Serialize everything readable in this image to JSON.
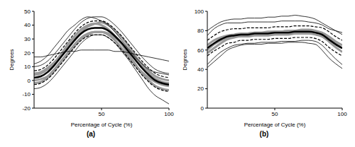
{
  "chart_data": [
    {
      "type": "line",
      "title": "(a)",
      "xlabel": "Percentage of Cycle (%)",
      "ylabel": "Degrees",
      "x": [
        0,
        5,
        10,
        15,
        20,
        25,
        30,
        35,
        40,
        45,
        50,
        55,
        60,
        65,
        70,
        75,
        80,
        85,
        90,
        95,
        100
      ],
      "xlim": [
        0,
        100
      ],
      "xticks": [
        50,
        100
      ],
      "ylim": [
        -20,
        50
      ],
      "yticks": [
        -20,
        -10,
        0,
        10,
        20,
        30,
        40,
        50
      ],
      "grid": false,
      "series": [
        {
          "color": "#999999",
          "line_style": "solid",
          "values": [
            4,
            5,
            8,
            13,
            19,
            26,
            32,
            37,
            40,
            41,
            40,
            37,
            32,
            26,
            19,
            12,
            5,
            0,
            -4,
            -6,
            -7
          ]
        },
        {
          "color": "#999999",
          "line_style": "solid",
          "values": [
            0,
            1,
            3,
            8,
            14,
            20,
            26,
            31,
            34,
            35,
            35,
            34,
            31,
            27,
            22,
            17,
            12,
            7,
            3,
            1,
            0
          ]
        },
        {
          "color": "#999999",
          "line_style": "solid",
          "values": [
            5,
            6,
            9,
            13,
            18,
            24,
            30,
            35,
            39,
            41,
            42,
            40,
            36,
            31,
            25,
            18,
            11,
            5,
            1,
            -1,
            -2
          ]
        },
        {
          "color": "#999999",
          "line_style": "solid",
          "values": [
            -2,
            -1,
            2,
            7,
            13,
            19,
            25,
            30,
            33,
            35,
            35,
            33,
            29,
            23,
            17,
            11,
            6,
            2,
            -1,
            -3,
            -4
          ]
        },
        {
          "color": "#000000",
          "line_style": "solid",
          "values": [
            17,
            17,
            18,
            19,
            20,
            21,
            21,
            22,
            22,
            22,
            22,
            22,
            21,
            21,
            20,
            19,
            18,
            17,
            16,
            15,
            14
          ]
        },
        {
          "color": "#000000",
          "line_style": "solid",
          "values": [
            10,
            11,
            14,
            19,
            25,
            31,
            37,
            42,
            45,
            46,
            46,
            44,
            40,
            35,
            29,
            23,
            17,
            12,
            8,
            6,
            5
          ]
        },
        {
          "color": "#000000",
          "line_style": "solid",
          "values": [
            -6,
            -5,
            -2,
            3,
            9,
            15,
            21,
            27,
            31,
            33,
            33,
            31,
            27,
            21,
            15,
            8,
            1,
            -6,
            -11,
            -14,
            -17
          ]
        },
        {
          "color": "#000000",
          "line_style": "solid",
          "values": [
            12,
            14,
            18,
            24,
            30,
            36,
            40,
            44,
            46,
            45,
            43,
            40,
            35,
            29,
            23,
            17,
            12,
            8,
            6,
            5,
            4
          ]
        },
        {
          "color": "#000000",
          "line_style": "dashed",
          "values": [
            7,
            8,
            11,
            16,
            22,
            28,
            34,
            39,
            42,
            43,
            43,
            41,
            37,
            32,
            26,
            20,
            14,
            9,
            5,
            3,
            2
          ]
        },
        {
          "color": "#000000",
          "line_style": "dashed",
          "values": [
            -3,
            -2,
            1,
            6,
            12,
            18,
            24,
            29,
            32,
            33,
            33,
            31,
            27,
            22,
            16,
            10,
            4,
            -1,
            -5,
            -7,
            -8
          ]
        },
        {
          "color": "#000000",
          "line_style": "bold",
          "values": [
            2,
            3,
            6,
            11,
            17,
            23,
            29,
            34,
            37,
            38,
            38,
            36,
            32,
            27,
            21,
            15,
            9,
            4,
            0,
            -2,
            -3
          ]
        }
      ]
    },
    {
      "type": "line",
      "title": "(b)",
      "xlabel": "Percentage of Cycle (%)",
      "ylabel": "Degrees",
      "x": [
        0,
        5,
        10,
        15,
        20,
        25,
        30,
        35,
        40,
        45,
        50,
        55,
        60,
        65,
        70,
        75,
        80,
        85,
        90,
        95,
        100
      ],
      "xlim": [
        0,
        100
      ],
      "xticks": [
        50,
        100
      ],
      "ylim": [
        0,
        100
      ],
      "yticks": [
        0,
        20,
        40,
        60,
        80,
        100
      ],
      "grid": false,
      "series": [
        {
          "color": "#999999",
          "line_style": "solid",
          "values": [
            60,
            66,
            70,
            73,
            75,
            76,
            77,
            78,
            78,
            78,
            79,
            79,
            80,
            80,
            80,
            80,
            79,
            77,
            72,
            67,
            62
          ]
        },
        {
          "color": "#999999",
          "line_style": "solid",
          "values": [
            65,
            70,
            73,
            75,
            76,
            77,
            77,
            78,
            78,
            79,
            79,
            79,
            80,
            80,
            81,
            81,
            80,
            78,
            74,
            69,
            65
          ]
        },
        {
          "color": "#999999",
          "line_style": "solid",
          "values": [
            57,
            62,
            67,
            71,
            73,
            74,
            74,
            75,
            75,
            75,
            76,
            76,
            76,
            77,
            77,
            77,
            76,
            74,
            69,
            63,
            58
          ]
        },
        {
          "color": "#000000",
          "line_style": "solid",
          "values": [
            80,
            85,
            89,
            91,
            92,
            92,
            93,
            93,
            93,
            94,
            94,
            95,
            95,
            96,
            95,
            94,
            92,
            88,
            84,
            80,
            76
          ]
        },
        {
          "color": "#000000",
          "line_style": "solid",
          "values": [
            75,
            82,
            86,
            88,
            88,
            88,
            89,
            89,
            89,
            89,
            89,
            90,
            90,
            90,
            90,
            89,
            88,
            86,
            82,
            80,
            78
          ]
        },
        {
          "color": "#000000",
          "line_style": "solid",
          "values": [
            45,
            52,
            58,
            62,
            65,
            66,
            67,
            67,
            68,
            68,
            68,
            69,
            69,
            69,
            70,
            70,
            69,
            65,
            58,
            51,
            45
          ]
        },
        {
          "color": "#000000",
          "line_style": "solid",
          "values": [
            42,
            48,
            54,
            60,
            63,
            65,
            66,
            66,
            66,
            67,
            67,
            67,
            68,
            68,
            68,
            67,
            66,
            60,
            52,
            46,
            41
          ]
        },
        {
          "color": "#000000",
          "line_style": "dashed",
          "values": [
            70,
            75,
            79,
            81,
            82,
            82,
            83,
            83,
            83,
            83,
            84,
            84,
            84,
            85,
            85,
            85,
            84,
            83,
            79,
            74,
            70
          ]
        },
        {
          "color": "#000000",
          "line_style": "dashed",
          "values": [
            54,
            59,
            63,
            67,
            68,
            70,
            70,
            71,
            71,
            71,
            72,
            72,
            72,
            73,
            73,
            73,
            72,
            69,
            63,
            58,
            54
          ]
        },
        {
          "color": "#000000",
          "line_style": "bold",
          "values": [
            62,
            67,
            71,
            74,
            75,
            76,
            76,
            77,
            77,
            77,
            78,
            78,
            78,
            79,
            79,
            79,
            78,
            76,
            71,
            66,
            62
          ]
        }
      ]
    }
  ]
}
